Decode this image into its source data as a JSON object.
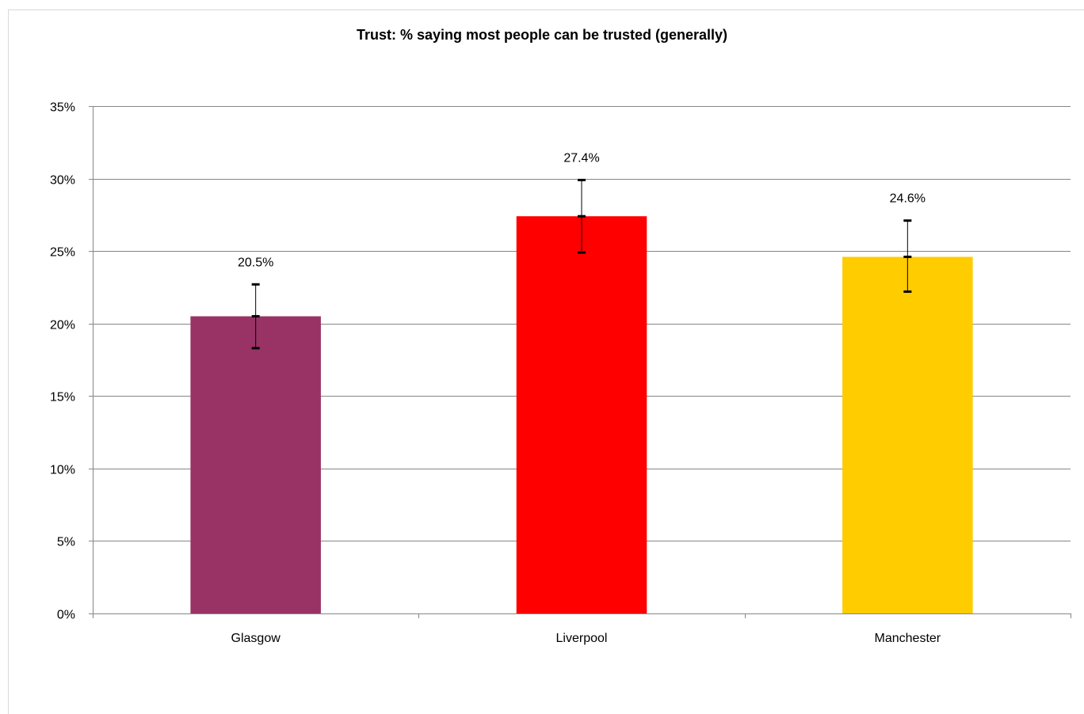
{
  "chart_data": {
    "type": "bar",
    "title": "Trust: % saying most people can be trusted (generally)",
    "xlabel": "",
    "ylabel": "",
    "categories": [
      "Glasgow",
      "Liverpool",
      "Manchester"
    ],
    "values": [
      20.5,
      27.4,
      24.6
    ],
    "data_labels": [
      "20.5%",
      "27.4%",
      "24.6%"
    ],
    "error_low": [
      18.3,
      24.9,
      22.2
    ],
    "error_high": [
      22.7,
      29.9,
      27.1
    ],
    "colors": [
      "#993366",
      "#ff0000",
      "#ffcc00"
    ],
    "ylim": [
      0,
      35
    ],
    "yticks": [
      0,
      5,
      10,
      15,
      20,
      25,
      30,
      35
    ],
    "ytick_labels": [
      "0%",
      "5%",
      "10%",
      "15%",
      "20%",
      "25%",
      "30%",
      "35%"
    ],
    "grid": true,
    "legend": "none"
  }
}
